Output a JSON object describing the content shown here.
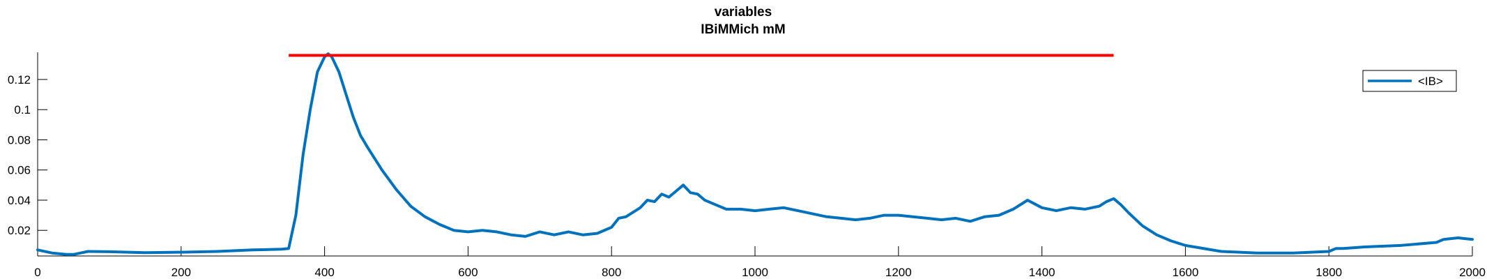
{
  "chart_data": {
    "type": "line",
    "title": "variables",
    "subtitle": "IBiMMich mM",
    "xlabel": "",
    "ylabel": "",
    "xlim": [
      0,
      2000
    ],
    "ylim": [
      0.003,
      0.138
    ],
    "xticks": [
      0,
      200,
      400,
      600,
      800,
      1000,
      1200,
      1400,
      1600,
      1800,
      2000
    ],
    "xtick_labels": [
      "0",
      "200",
      "400",
      "600",
      "800",
      "1000",
      "1200",
      "1400",
      "1600",
      "1800",
      "2000"
    ],
    "yticks": [
      0.02,
      0.04,
      0.06,
      0.08,
      0.1,
      0.12
    ],
    "ytick_labels": [
      "0.02",
      "0.04",
      "0.06",
      "0.08",
      "0.1",
      "0.12"
    ],
    "grid": false,
    "legend_position": "top-right",
    "series": [
      {
        "name": "<IB>",
        "color": "#0072bd",
        "x": [
          0,
          20,
          40,
          50,
          60,
          70,
          100,
          150,
          200,
          250,
          300,
          340,
          350,
          360,
          370,
          380,
          390,
          400,
          405,
          410,
          420,
          430,
          440,
          450,
          460,
          480,
          500,
          520,
          540,
          560,
          580,
          600,
          620,
          640,
          660,
          680,
          700,
          720,
          740,
          760,
          780,
          800,
          810,
          820,
          830,
          840,
          850,
          860,
          870,
          880,
          890,
          900,
          910,
          920,
          930,
          940,
          960,
          980,
          1000,
          1020,
          1040,
          1060,
          1080,
          1100,
          1120,
          1140,
          1160,
          1180,
          1200,
          1220,
          1240,
          1260,
          1280,
          1300,
          1320,
          1340,
          1360,
          1380,
          1400,
          1420,
          1440,
          1460,
          1480,
          1490,
          1500,
          1510,
          1520,
          1540,
          1560,
          1580,
          1600,
          1650,
          1700,
          1750,
          1800,
          1810,
          1820,
          1850,
          1900,
          1950,
          1960,
          1980,
          2000
        ],
        "y": [
          0.007,
          0.005,
          0.004,
          0.004,
          0.005,
          0.006,
          0.0058,
          0.0052,
          0.0055,
          0.006,
          0.007,
          0.0075,
          0.008,
          0.03,
          0.07,
          0.1,
          0.125,
          0.135,
          0.137,
          0.135,
          0.125,
          0.11,
          0.095,
          0.083,
          0.075,
          0.06,
          0.047,
          0.036,
          0.029,
          0.024,
          0.02,
          0.019,
          0.02,
          0.019,
          0.017,
          0.016,
          0.019,
          0.017,
          0.019,
          0.017,
          0.018,
          0.022,
          0.028,
          0.029,
          0.032,
          0.035,
          0.04,
          0.039,
          0.044,
          0.042,
          0.046,
          0.05,
          0.045,
          0.044,
          0.04,
          0.038,
          0.034,
          0.034,
          0.033,
          0.034,
          0.035,
          0.033,
          0.031,
          0.029,
          0.028,
          0.027,
          0.028,
          0.03,
          0.03,
          0.029,
          0.028,
          0.027,
          0.028,
          0.026,
          0.029,
          0.03,
          0.034,
          0.04,
          0.035,
          0.033,
          0.035,
          0.034,
          0.036,
          0.039,
          0.041,
          0.037,
          0.032,
          0.023,
          0.017,
          0.013,
          0.01,
          0.006,
          0.005,
          0.005,
          0.006,
          0.008,
          0.008,
          0.009,
          0.01,
          0.012,
          0.014,
          0.015,
          0.014
        ]
      }
    ],
    "reference_line": {
      "color": "#ff0000",
      "x": [
        350,
        1500
      ],
      "y": [
        0.136,
        0.136
      ]
    }
  }
}
